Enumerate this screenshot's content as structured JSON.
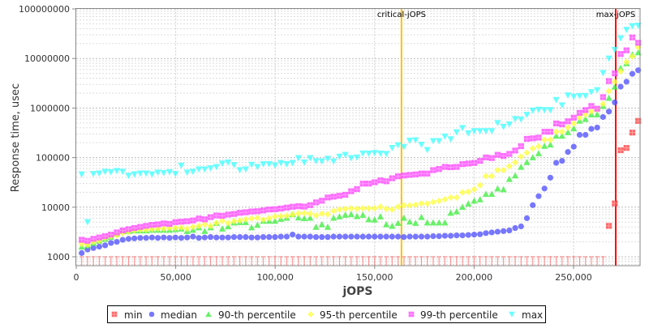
{
  "chart_data": {
    "type": "scatter",
    "title": "",
    "xlabel": "jOPS",
    "ylabel": "Response time, usec",
    "xlim": [
      0,
      283400
    ],
    "ylim": [
      660,
      100000000
    ],
    "y_scale": "log",
    "grid": true,
    "legend_position": "bottom",
    "x_ticks": [
      0,
      50000,
      100000,
      150000,
      200000,
      250000
    ],
    "x_tick_labels": [
      "0",
      "50,000",
      "100,000",
      "150,000",
      "200,000",
      "250,000"
    ],
    "y_ticks": [
      1000,
      10000,
      100000,
      1000000,
      10000000,
      100000000
    ],
    "y_tick_labels": [
      "1000",
      "10000",
      "100000",
      "1000000",
      "10000000",
      "100000000"
    ],
    "reference_lines": [
      {
        "label": "critical-jOPS",
        "x": 163500,
        "color": "#ffc000"
      },
      {
        "label": "max-jOPS",
        "x": 271200,
        "color": "#ff0000"
      }
    ],
    "x": [
      2730,
      5675,
      8620,
      11565,
      14510,
      17455,
      20400,
      23345,
      26290,
      29235,
      32180,
      35125,
      38070,
      41015,
      43960,
      46905,
      49850,
      52795,
      55740,
      58685,
      61630,
      64575,
      67520,
      70465,
      73410,
      76355,
      79300,
      82245,
      85190,
      88135,
      91080,
      94025,
      96970,
      99915,
      102860,
      105805,
      108750,
      111695,
      114640,
      117585,
      120530,
      123475,
      126420,
      129365,
      132310,
      135255,
      138200,
      141145,
      144090,
      147035,
      149980,
      152925,
      155870,
      158815,
      161760,
      164705,
      167650,
      170595,
      173540,
      176485,
      179430,
      182375,
      185320,
      188265,
      191210,
      194155,
      197100,
      200045,
      202990,
      205935,
      208880,
      211825,
      214770,
      217715,
      220660,
      223605,
      226550,
      229495,
      232440,
      235385,
      238330,
      241275,
      244220,
      247165,
      250110,
      253055,
      256000,
      258945,
      261890,
      264835,
      267780,
      270725,
      273670,
      276615,
      279560,
      282505
    ],
    "series": [
      {
        "name": "min",
        "color": "#ff4444",
        "marker": "square",
        "values": [
          null,
          null,
          null,
          null,
          null,
          null,
          null,
          null,
          null,
          null,
          null,
          null,
          null,
          null,
          null,
          null,
          null,
          null,
          null,
          null,
          null,
          null,
          null,
          null,
          null,
          null,
          null,
          null,
          null,
          null,
          null,
          null,
          null,
          null,
          null,
          null,
          null,
          null,
          null,
          null,
          null,
          null,
          null,
          null,
          null,
          null,
          null,
          null,
          null,
          null,
          null,
          null,
          null,
          null,
          null,
          null,
          null,
          null,
          null,
          null,
          null,
          null,
          null,
          null,
          null,
          null,
          null,
          null,
          null,
          null,
          null,
          null,
          null,
          null,
          null,
          null,
          null,
          null,
          null,
          null,
          null,
          null,
          null,
          null,
          null,
          null,
          null,
          null,
          null,
          null,
          4200,
          11900,
          141000,
          157000,
          320000,
          550000
        ]
      },
      {
        "name": "median",
        "color": "#5555ff",
        "marker": "circle",
        "values": [
          1190,
          1400,
          1500,
          1600,
          1700,
          1900,
          2000,
          2200,
          2300,
          2350,
          2400,
          2400,
          2450,
          2400,
          2450,
          2400,
          2450,
          2400,
          2450,
          2550,
          2400,
          2450,
          2500,
          2450,
          2450,
          2450,
          2500,
          2500,
          2500,
          2450,
          2450,
          2500,
          2500,
          2500,
          2550,
          2550,
          2800,
          2550,
          2550,
          2550,
          2500,
          2500,
          2500,
          2550,
          2550,
          2550,
          2550,
          2550,
          2550,
          2550,
          2550,
          2550,
          2550,
          2550,
          2550,
          2500,
          2550,
          2550,
          2550,
          2550,
          2600,
          2600,
          2650,
          2650,
          2700,
          2700,
          2750,
          2800,
          2850,
          3000,
          3100,
          3200,
          3300,
          3400,
          3800,
          4100,
          6000,
          11000,
          16700,
          23800,
          39400,
          78600,
          86000,
          130000,
          166000,
          288000,
          288000,
          380000,
          405000,
          660000,
          850000,
          1300000,
          2700000,
          3400000,
          4900000,
          5800000
        ]
      },
      {
        "name": "90-th percentile",
        "color": "#44ee44",
        "marker": "triangle-up",
        "values": [
          1600,
          1700,
          1900,
          2100,
          2300,
          2500,
          2900,
          3300,
          3300,
          3400,
          3400,
          3400,
          3500,
          3500,
          3500,
          3500,
          3600,
          3700,
          3300,
          3500,
          3900,
          3300,
          3900,
          4800,
          3700,
          4100,
          4900,
          5000,
          5000,
          3900,
          4400,
          5300,
          5300,
          5300,
          5800,
          6100,
          7200,
          6200,
          6000,
          6100,
          4000,
          4500,
          4000,
          6100,
          6500,
          7000,
          7200,
          6600,
          7000,
          5700,
          5600,
          6500,
          4500,
          4200,
          4800,
          6100,
          5100,
          4800,
          6300,
          4900,
          4900,
          4900,
          4900,
          7700,
          8200,
          10100,
          11800,
          13500,
          14400,
          18500,
          18500,
          23800,
          22900,
          37000,
          43600,
          65000,
          81000,
          101000,
          122000,
          172000,
          183000,
          276000,
          276000,
          325000,
          389000,
          555000,
          600000,
          745000,
          745000,
          1100000,
          1600000,
          2700000,
          6400000,
          8000000,
          12000000,
          13300000
        ]
      },
      {
        "name": "95-th percentile",
        "color": "#ffff44",
        "marker": "diamond",
        "values": [
          1800,
          1750,
          2000,
          2100,
          2400,
          2600,
          2700,
          3000,
          3200,
          3400,
          3500,
          3500,
          3600,
          3700,
          3700,
          3800,
          3800,
          3900,
          3700,
          4000,
          4200,
          4500,
          4200,
          4800,
          5300,
          4800,
          5200,
          5400,
          5700,
          5900,
          6100,
          5600,
          6000,
          6500,
          6600,
          6700,
          7100,
          7500,
          7600,
          7400,
          6800,
          7400,
          7200,
          8400,
          9000,
          9300,
          9500,
          9300,
          9500,
          9500,
          9500,
          10200,
          9300,
          9000,
          10200,
          10900,
          10900,
          11200,
          11900,
          11800,
          12700,
          13400,
          14400,
          15700,
          15700,
          19900,
          20500,
          22900,
          27800,
          42500,
          42500,
          56000,
          56000,
          67000,
          80000,
          105000,
          125000,
          153000,
          168000,
          229000,
          229000,
          333000,
          333000,
          405000,
          489000,
          640000,
          737000,
          855000,
          946000,
          1210000,
          2200000,
          3400000,
          5500000,
          8500000,
          11000000,
          17000000
        ]
      },
      {
        "name": "99-th percentile",
        "color": "#ff44ff",
        "marker": "square",
        "values": [
          2200,
          2100,
          2300,
          2450,
          2600,
          2800,
          3100,
          3400,
          3600,
          3800,
          4000,
          4200,
          4400,
          4500,
          4700,
          4600,
          5000,
          5100,
          5200,
          5400,
          5900,
          5700,
          6300,
          6800,
          6700,
          7100,
          7300,
          7700,
          7900,
          8200,
          8300,
          8600,
          9000,
          9100,
          9400,
          9800,
          10200,
          10500,
          10300,
          11000,
          12500,
          13500,
          15700,
          16300,
          17000,
          17800,
          21000,
          23200,
          29900,
          29900,
          31800,
          34800,
          33400,
          38300,
          42000,
          43600,
          44800,
          45900,
          47700,
          47700,
          56000,
          59000,
          65000,
          64000,
          65000,
          74000,
          76000,
          78000,
          86000,
          101000,
          98000,
          114000,
          108000,
          119000,
          139000,
          170000,
          239000,
          245000,
          253000,
          333000,
          333000,
          489000,
          470000,
          541000,
          640000,
          800000,
          911000,
          1100000,
          970000,
          1660000,
          3500000,
          5000000,
          12300000,
          14600000,
          26600000,
          20700000
        ]
      },
      {
        "name": "max",
        "color": "#44ffff",
        "marker": "triangle-down",
        "values": [
          46000,
          5000,
          47000,
          48000,
          52000,
          51000,
          54000,
          52000,
          43000,
          46000,
          48000,
          48000,
          46000,
          50000,
          49000,
          51000,
          47000,
          69000,
          50000,
          52000,
          58000,
          58000,
          61000,
          65000,
          76000,
          80000,
          71000,
          56000,
          58000,
          72000,
          65000,
          74000,
          74000,
          70000,
          78000,
          74000,
          78000,
          98000,
          80000,
          98000,
          85000,
          84000,
          95000,
          84000,
          105000,
          114000,
          98000,
          101000,
          121000,
          121000,
          124000,
          121000,
          119000,
          157000,
          178000,
          165000,
          220000,
          225000,
          183000,
          143000,
          216000,
          216000,
          267000,
          235000,
          325000,
          397000,
          310000,
          343000,
          343000,
          343000,
          343000,
          500000,
          418000,
          470000,
          600000,
          590000,
          730000,
          890000,
          930000,
          911000,
          911000,
          1460000,
          1140000,
          1800000,
          1700000,
          1750000,
          1750000,
          2100000,
          2300000,
          5100000,
          10000000,
          15000000,
          25600000,
          38000000,
          45000000,
          46000000
        ]
      }
    ]
  }
}
